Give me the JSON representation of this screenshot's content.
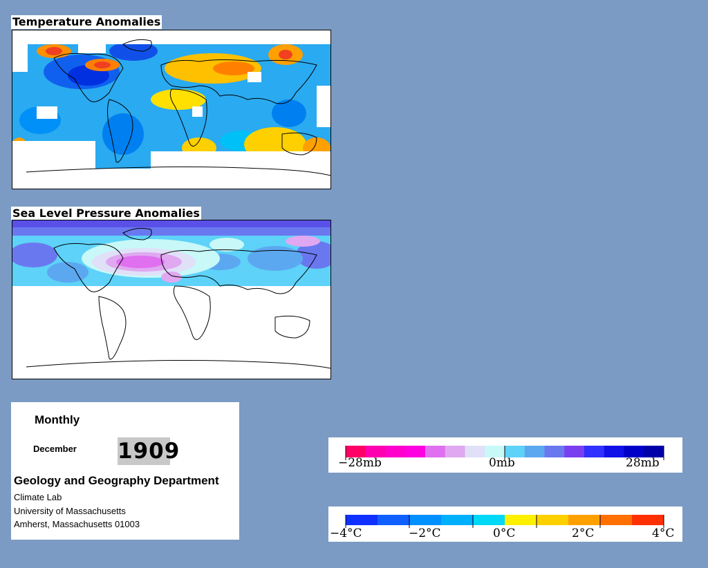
{
  "maps": {
    "temperature": {
      "title": "Temperature Anomalies"
    },
    "pressure": {
      "title": "Sea Level Pressure Anomalies"
    }
  },
  "info": {
    "frequency": "Monthly",
    "month": "December",
    "year": "1909",
    "department": "Geology and Geography Department",
    "lines": [
      "Climate Lab",
      "University of Massachusetts",
      "Amherst, Massachusetts 01003"
    ]
  },
  "legends": {
    "pressure": {
      "colors": [
        "#ff0066",
        "#ff00b0",
        "#ff00cc",
        "#ff00e0",
        "#e070f0",
        "#e0a8f0",
        "#e0e0f8",
        "#c8f8f8",
        "#5ed2f8",
        "#5ca8f0",
        "#6a78f0",
        "#7a40f0",
        "#3030ff",
        "#1010e8",
        "#0000c8",
        "#0000a8"
      ],
      "labels": [
        "−28mb",
        "0mb",
        "28mb"
      ]
    },
    "temperature": {
      "colors": [
        "#1030ff",
        "#1060ff",
        "#0090ff",
        "#00b0ff",
        "#00d8f8",
        "#fff000",
        "#ffd000",
        "#ffa000",
        "#ff7000",
        "#ff3000"
      ],
      "labels": [
        "−4°C",
        "−2°C",
        "0°C",
        "2°C",
        "4°C"
      ]
    }
  }
}
